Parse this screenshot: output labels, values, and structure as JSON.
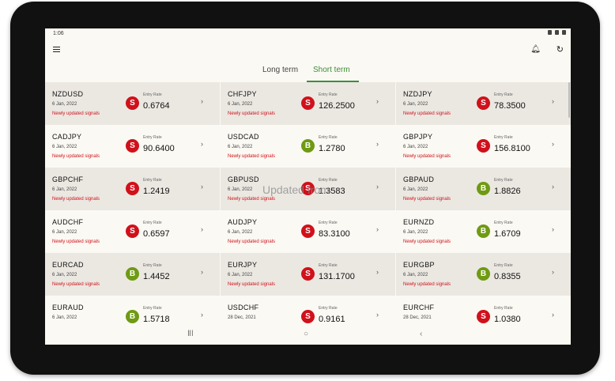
{
  "status": {
    "time": "1:06"
  },
  "tabs": [
    {
      "label": "Long term",
      "active": false
    },
    {
      "label": "Short term",
      "active": true
    }
  ],
  "overlay_text": "Updated from",
  "entry_label": "Entry Rate",
  "rows": [
    [
      {
        "pair": "NZDUSD",
        "date": "6 Jan, 2022",
        "note": "Newly updated signals",
        "signal": "S",
        "rate": "0.6764"
      },
      {
        "pair": "CHFJPY",
        "date": "6 Jan, 2022",
        "note": "Newly updated signals",
        "signal": "S",
        "rate": "126.2500"
      },
      {
        "pair": "NZDJPY",
        "date": "6 Jan, 2022",
        "note": "Newly updated signals",
        "signal": "S",
        "rate": "78.3500"
      }
    ],
    [
      {
        "pair": "CADJPY",
        "date": "6 Jan, 2022",
        "note": "Newly updated signals",
        "signal": "S",
        "rate": "90.6400"
      },
      {
        "pair": "USDCAD",
        "date": "6 Jan, 2022",
        "note": "Newly updated signals",
        "signal": "B",
        "rate": "1.2780"
      },
      {
        "pair": "GBPJPY",
        "date": "6 Jan, 2022",
        "note": "Newly updated signals",
        "signal": "S",
        "rate": "156.8100"
      }
    ],
    [
      {
        "pair": "GBPCHF",
        "date": "6 Jan, 2022",
        "note": "Newly updated signals",
        "signal": "S",
        "rate": "1.2419"
      },
      {
        "pair": "GBPUSD",
        "date": "6 Jan, 2022",
        "note": "Newly updated signals",
        "signal": "S",
        "rate": "1.3583"
      },
      {
        "pair": "GBPAUD",
        "date": "6 Jan, 2022",
        "note": "Newly updated signals",
        "signal": "B",
        "rate": "1.8826"
      }
    ],
    [
      {
        "pair": "AUDCHF",
        "date": "6 Jan, 2022",
        "note": "Newly updated signals",
        "signal": "S",
        "rate": "0.6597"
      },
      {
        "pair": "AUDJPY",
        "date": "6 Jan, 2022",
        "note": "Newly updated signals",
        "signal": "S",
        "rate": "83.3100"
      },
      {
        "pair": "EURNZD",
        "date": "6 Jan, 2022",
        "note": "Newly updated signals",
        "signal": "B",
        "rate": "1.6709"
      }
    ],
    [
      {
        "pair": "EURCAD",
        "date": "6 Jan, 2022",
        "note": "Newly updated signals",
        "signal": "B",
        "rate": "1.4452"
      },
      {
        "pair": "EURJPY",
        "date": "6 Jan, 2022",
        "note": "Newly updated signals",
        "signal": "S",
        "rate": "131.1700"
      },
      {
        "pair": "EURGBP",
        "date": "6 Jan, 2022",
        "note": "Newly updated signals",
        "signal": "B",
        "rate": "0.8355"
      }
    ],
    [
      {
        "pair": "EURAUD",
        "date": "6 Jan, 2022",
        "note": "",
        "signal": "B",
        "rate": "1.5718"
      },
      {
        "pair": "USDCHF",
        "date": "28 Dec, 2021",
        "note": "",
        "signal": "S",
        "rate": "0.9161"
      },
      {
        "pair": "EURCHF",
        "date": "28 Dec, 2021",
        "note": "",
        "signal": "S",
        "rate": "1.0380"
      }
    ]
  ],
  "icons": {
    "menu": "menu-icon",
    "bell": "bell-icon",
    "refresh": "refresh-icon",
    "chevron": "chevron-right-icon",
    "nav_recent": "recents-icon",
    "nav_home": "home-icon",
    "nav_back": "back-icon"
  },
  "colors": {
    "sell": "#d0111b",
    "buy": "#6f9a13",
    "accent": "#3a8f3a",
    "row_shade": "#ebe8e2"
  }
}
